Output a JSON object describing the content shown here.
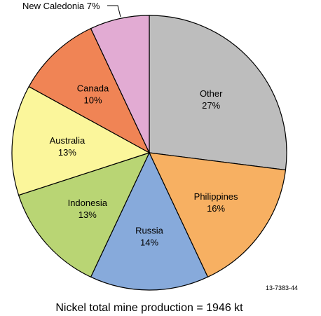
{
  "chart_data": {
    "type": "pie",
    "slices": [
      {
        "label": "Other",
        "value": 27,
        "color": "#bdbdbd"
      },
      {
        "label": "Philippines",
        "value": 16,
        "color": "#f7b062"
      },
      {
        "label": "Russia",
        "value": 14,
        "color": "#87aadb"
      },
      {
        "label": "Indonesia",
        "value": 13,
        "color": "#b9d574"
      },
      {
        "label": "Australia",
        "value": 13,
        "color": "#fbf69b"
      },
      {
        "label": "Canada",
        "value": 10,
        "color": "#f08455"
      },
      {
        "label": "New Caledonia",
        "value": 7,
        "color": "#e2abd3"
      }
    ],
    "value_suffix": "%",
    "external_label": "New Caledonia 7%",
    "figure_id": "13-7383-44",
    "caption": "Nickel total mine production = 1946 kt"
  }
}
